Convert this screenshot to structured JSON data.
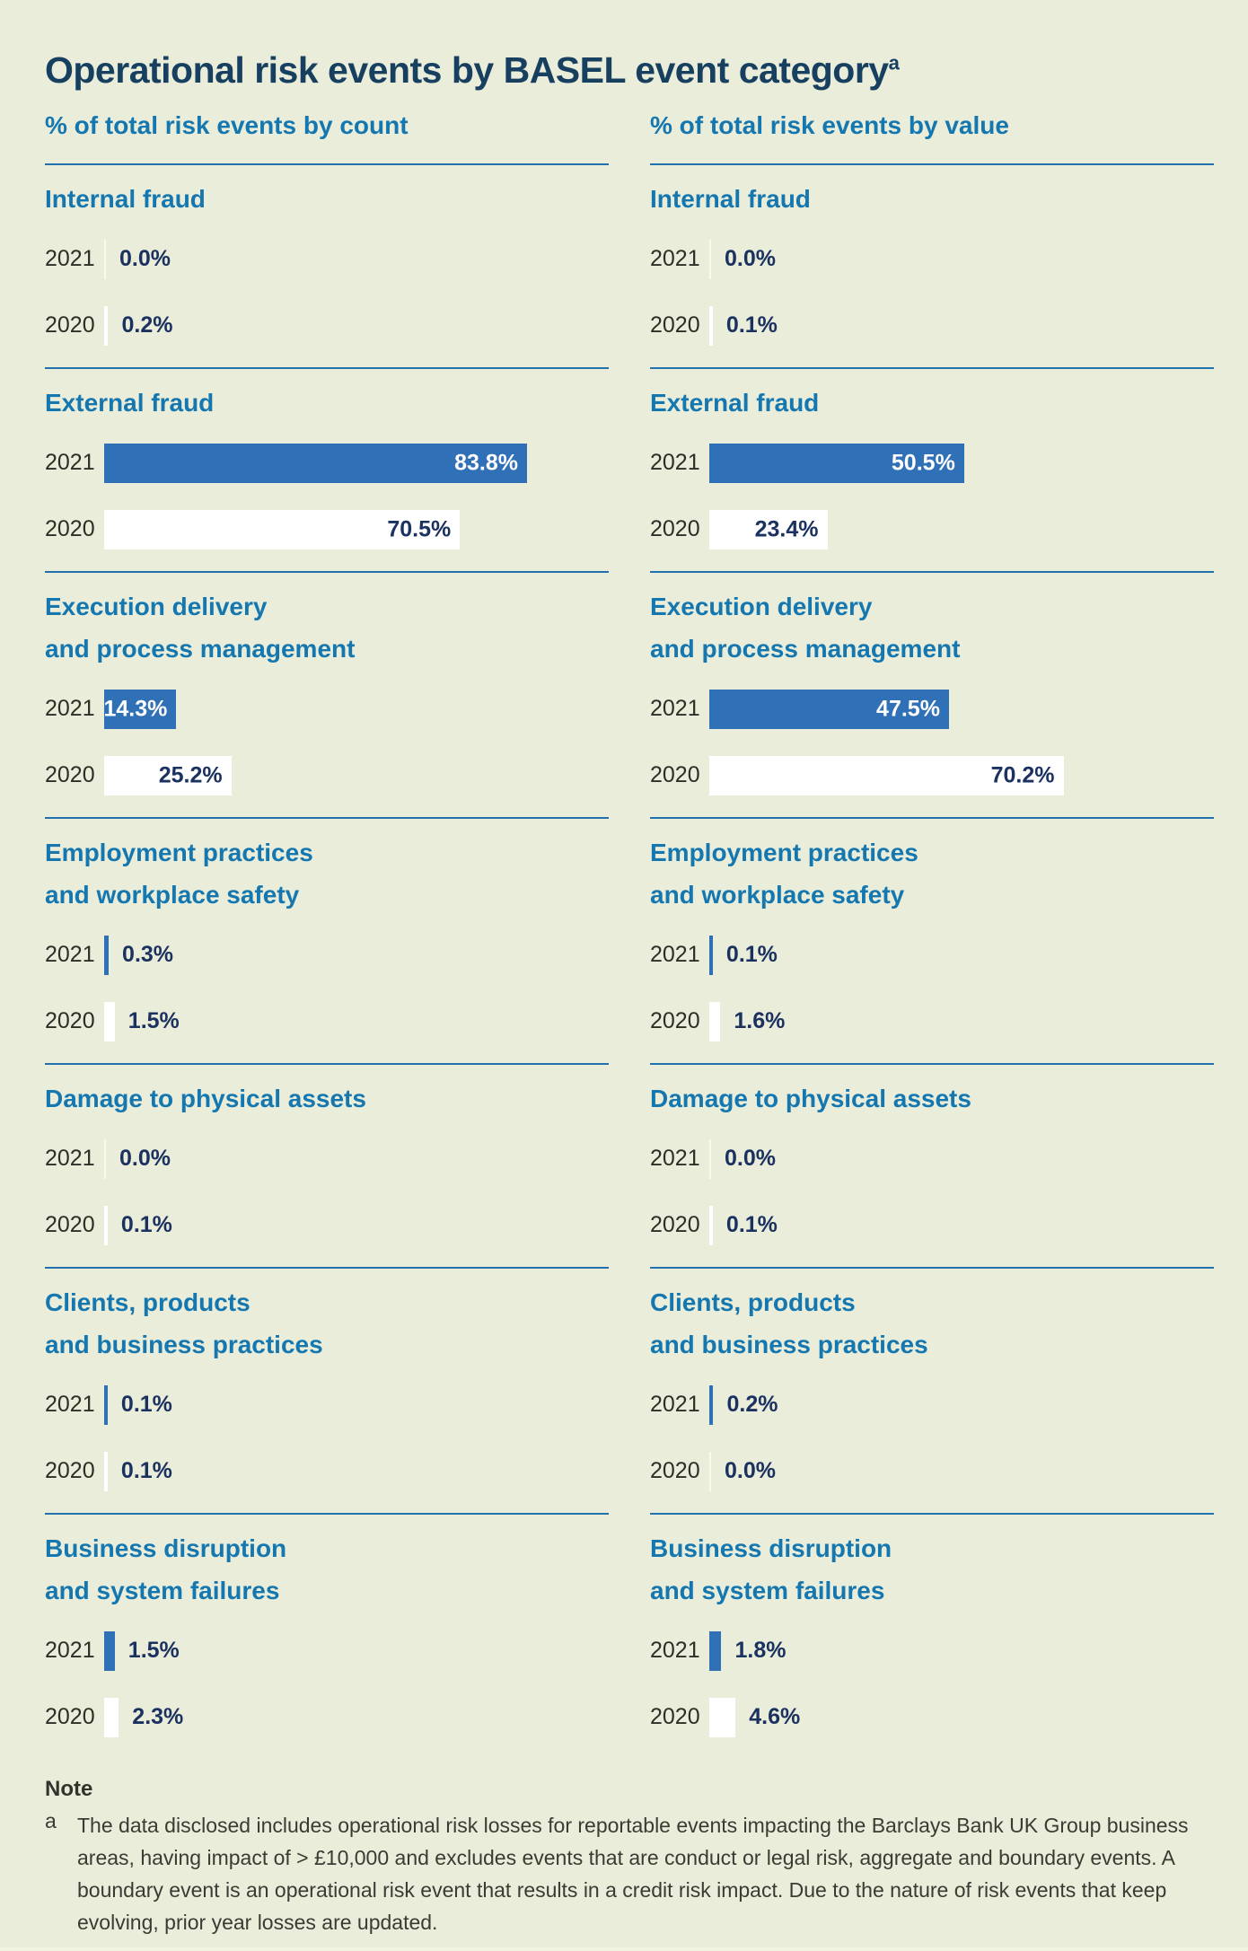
{
  "title": {
    "text": "Operational risk events by BASEL event category",
    "superscript": "a"
  },
  "colors": {
    "background": "#EAEDDA",
    "title_navy": "#173F5F",
    "heading_blue": "#1577B0",
    "divider_blue": "#2272AE",
    "bar_blue_2021": "#2F70B7",
    "bar_white_2020": "#FFFFFF",
    "value_navy": "#1B3160",
    "year_text": "#2E2E27",
    "note_text": "#3B3B33"
  },
  "columns": [
    {
      "subtitle": "% of total risk events by count",
      "sections": [
        {
          "heading_lines": [
            "Internal fraud"
          ],
          "rows": [
            {
              "year": "2021",
              "value": 0.0,
              "label": "0.0%"
            },
            {
              "year": "2020",
              "value": 0.2,
              "label": "0.2%"
            }
          ]
        },
        {
          "heading_lines": [
            "External fraud"
          ],
          "rows": [
            {
              "year": "2021",
              "value": 83.8,
              "label": "83.8%"
            },
            {
              "year": "2020",
              "value": 70.5,
              "label": "70.5%"
            }
          ]
        },
        {
          "heading_lines": [
            "Execution delivery",
            "and process management"
          ],
          "rows": [
            {
              "year": "2021",
              "value": 14.3,
              "label": "14.3%"
            },
            {
              "year": "2020",
              "value": 25.2,
              "label": "25.2%"
            }
          ]
        },
        {
          "heading_lines": [
            "Employment practices",
            "and workplace safety"
          ],
          "rows": [
            {
              "year": "2021",
              "value": 0.3,
              "label": "0.3%"
            },
            {
              "year": "2020",
              "value": 1.5,
              "label": "1.5%"
            }
          ]
        },
        {
          "heading_lines": [
            "Damage to physical assets"
          ],
          "rows": [
            {
              "year": "2021",
              "value": 0.0,
              "label": "0.0%"
            },
            {
              "year": "2020",
              "value": 0.1,
              "label": "0.1%"
            }
          ]
        },
        {
          "heading_lines": [
            "Clients, products",
            "and business practices"
          ],
          "rows": [
            {
              "year": "2021",
              "value": 0.1,
              "label": "0.1%"
            },
            {
              "year": "2020",
              "value": 0.1,
              "label": "0.1%"
            }
          ]
        },
        {
          "heading_lines": [
            "Business disruption",
            "and system failures"
          ],
          "rows": [
            {
              "year": "2021",
              "value": 1.5,
              "label": "1.5%"
            },
            {
              "year": "2020",
              "value": 2.3,
              "label": "2.3%"
            }
          ]
        }
      ]
    },
    {
      "subtitle": "% of total risk events by value",
      "sections": [
        {
          "heading_lines": [
            "Internal fraud"
          ],
          "rows": [
            {
              "year": "2021",
              "value": 0.0,
              "label": "0.0%"
            },
            {
              "year": "2020",
              "value": 0.1,
              "label": "0.1%"
            }
          ]
        },
        {
          "heading_lines": [
            "External fraud"
          ],
          "rows": [
            {
              "year": "2021",
              "value": 50.5,
              "label": "50.5%"
            },
            {
              "year": "2020",
              "value": 23.4,
              "label": "23.4%"
            }
          ]
        },
        {
          "heading_lines": [
            "Execution delivery",
            "and process management"
          ],
          "rows": [
            {
              "year": "2021",
              "value": 47.5,
              "label": "47.5%"
            },
            {
              "year": "2020",
              "value": 70.2,
              "label": "70.2%"
            }
          ]
        },
        {
          "heading_lines": [
            "Employment practices",
            "and workplace safety"
          ],
          "rows": [
            {
              "year": "2021",
              "value": 0.1,
              "label": "0.1%"
            },
            {
              "year": "2020",
              "value": 1.6,
              "label": "1.6%"
            }
          ]
        },
        {
          "heading_lines": [
            "Damage to physical assets"
          ],
          "rows": [
            {
              "year": "2021",
              "value": 0.0,
              "label": "0.0%"
            },
            {
              "year": "2020",
              "value": 0.1,
              "label": "0.1%"
            }
          ]
        },
        {
          "heading_lines": [
            "Clients, products",
            "and business practices"
          ],
          "rows": [
            {
              "year": "2021",
              "value": 0.2,
              "label": "0.2%"
            },
            {
              "year": "2020",
              "value": 0.0,
              "label": "0.0%"
            }
          ]
        },
        {
          "heading_lines": [
            "Business disruption",
            "and system failures"
          ],
          "rows": [
            {
              "year": "2021",
              "value": 1.8,
              "label": "1.8%"
            },
            {
              "year": "2020",
              "value": 4.6,
              "label": "4.6%"
            }
          ]
        }
      ]
    }
  ],
  "note": {
    "heading": "Note",
    "marker": "a",
    "text": "The data disclosed includes operational risk losses for reportable events impacting the Barclays Bank UK Group business areas, having impact of > £10,000 and excludes events that are conduct or legal risk, aggregate and boundary events. A boundary event is an operational risk event that results in a credit risk impact. Due to the nature of risk events that keep evolving, prior year losses are updated."
  },
  "chart_data": [
    {
      "type": "bar",
      "orientation": "horizontal",
      "title": "% of total risk events by count",
      "categories": [
        "Internal fraud",
        "External fraud",
        "Execution delivery and process management",
        "Employment practices and workplace safety",
        "Damage to physical assets",
        "Clients, products and business practices",
        "Business disruption and system failures"
      ],
      "series": [
        {
          "name": "2021",
          "values": [
            0.0,
            83.8,
            14.3,
            0.3,
            0.0,
            0.1,
            1.5
          ]
        },
        {
          "name": "2020",
          "values": [
            0.2,
            70.5,
            25.2,
            1.5,
            0.1,
            0.1,
            2.3
          ]
        }
      ],
      "unit": "%",
      "xlim": [
        0,
        100
      ],
      "grid": false,
      "legend": "none",
      "data_labels": true
    },
    {
      "type": "bar",
      "orientation": "horizontal",
      "title": "% of total risk events by value",
      "categories": [
        "Internal fraud",
        "External fraud",
        "Execution delivery and process management",
        "Employment practices and workplace safety",
        "Damage to physical assets",
        "Clients, products and business practices",
        "Business disruption and system failures"
      ],
      "series": [
        {
          "name": "2021",
          "values": [
            0.0,
            50.5,
            47.5,
            0.1,
            0.0,
            0.2,
            1.8
          ]
        },
        {
          "name": "2020",
          "values": [
            0.1,
            23.4,
            70.2,
            1.6,
            0.1,
            0.0,
            4.6
          ]
        }
      ],
      "unit": "%",
      "xlim": [
        0,
        100
      ],
      "grid": false,
      "legend": "none",
      "data_labels": true
    }
  ]
}
